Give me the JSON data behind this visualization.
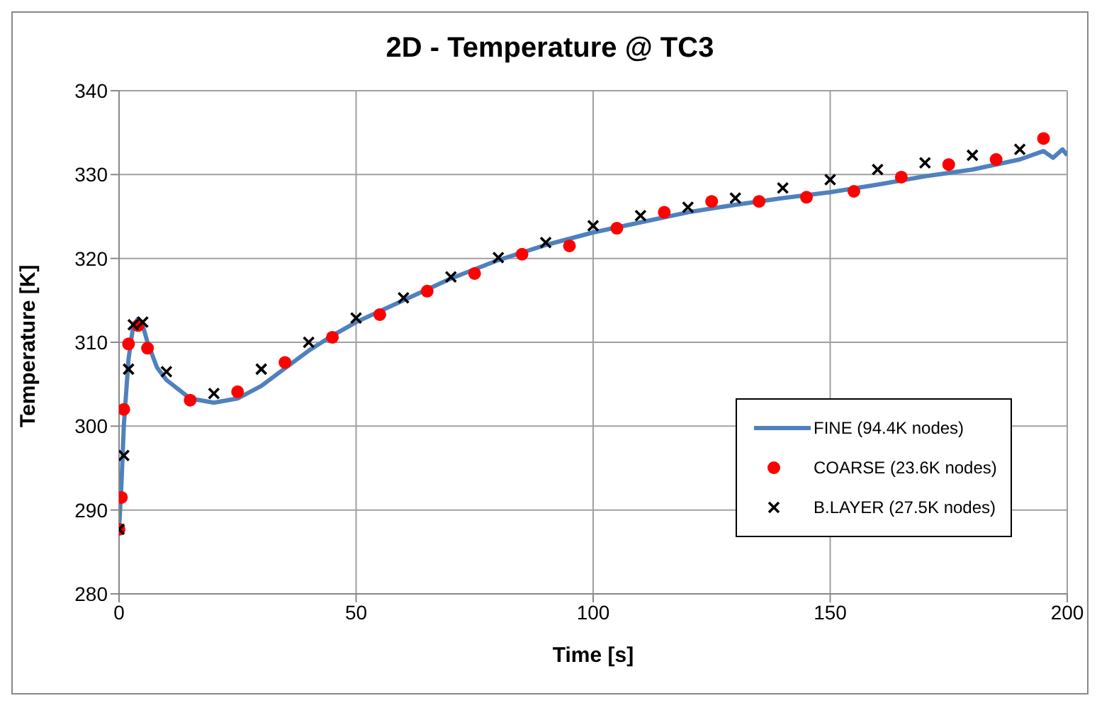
{
  "chart_data": {
    "type": "line",
    "title": "2D - Temperature @ TC3",
    "xlabel": "Time [s]",
    "ylabel": "Temperature [K]",
    "xlim": [
      0,
      200
    ],
    "xticks": [
      0,
      50,
      100,
      150,
      200
    ],
    "ylim": [
      280,
      340
    ],
    "yticks": [
      280,
      290,
      300,
      310,
      320,
      330,
      340
    ],
    "grid": true,
    "legend": "bottom right",
    "series": [
      {
        "name": "FINE (94.4K nodes)",
        "color": "#4f81bd",
        "marker": "none",
        "line_style": "solid",
        "x": [
          0,
          0.5,
          1,
          2,
          3,
          4,
          5,
          6,
          8,
          10,
          15,
          20,
          25,
          30,
          35,
          40,
          45,
          50,
          60,
          70,
          80,
          90,
          100,
          110,
          120,
          130,
          140,
          150,
          160,
          170,
          180,
          190,
          195,
          197,
          199,
          200
        ],
        "values": [
          287.7,
          293,
          300,
          308,
          312,
          312.8,
          312,
          310,
          307,
          305.5,
          303.3,
          302.8,
          303.3,
          304.8,
          306.9,
          309,
          310.8,
          312.4,
          315,
          317.6,
          319.8,
          321.6,
          323.1,
          324.3,
          325.5,
          326.4,
          327.2,
          327.9,
          328.8,
          329.8,
          330.6,
          331.8,
          332.8,
          332,
          333,
          332.3
        ]
      },
      {
        "name": "COARSE (23.6K nodes)",
        "type": "scatter",
        "color": "#ff0000",
        "marker": "circle",
        "x": [
          0,
          0.5,
          1,
          2,
          4,
          6,
          15,
          25,
          35,
          45,
          55,
          65,
          75,
          85,
          95,
          105,
          115,
          125,
          135,
          145,
          155,
          165,
          175,
          185,
          195
        ],
        "values": [
          287.7,
          291.5,
          302,
          309.8,
          312,
          309.3,
          303.1,
          304.1,
          307.6,
          310.6,
          313.3,
          316.1,
          318.2,
          320.5,
          321.5,
          323.6,
          325.5,
          326.8,
          326.8,
          327.3,
          328,
          329.7,
          331.2,
          331.8,
          334.3
        ]
      },
      {
        "name": "B.LAYER (27.5K nodes)",
        "type": "scatter",
        "color": "#000000",
        "marker": "cross",
        "x": [
          0,
          1,
          2,
          3,
          5,
          10,
          20,
          30,
          40,
          50,
          60,
          70,
          80,
          90,
          100,
          110,
          120,
          130,
          140,
          150,
          160,
          170,
          180,
          190
        ],
        "values": [
          287.7,
          296.5,
          306.8,
          312.1,
          312.4,
          306.5,
          303.9,
          306.8,
          310,
          312.9,
          315.3,
          317.8,
          320.1,
          321.9,
          323.9,
          325.1,
          326.1,
          327.2,
          328.4,
          329.4,
          330.6,
          331.4,
          332.3,
          333
        ]
      }
    ]
  }
}
